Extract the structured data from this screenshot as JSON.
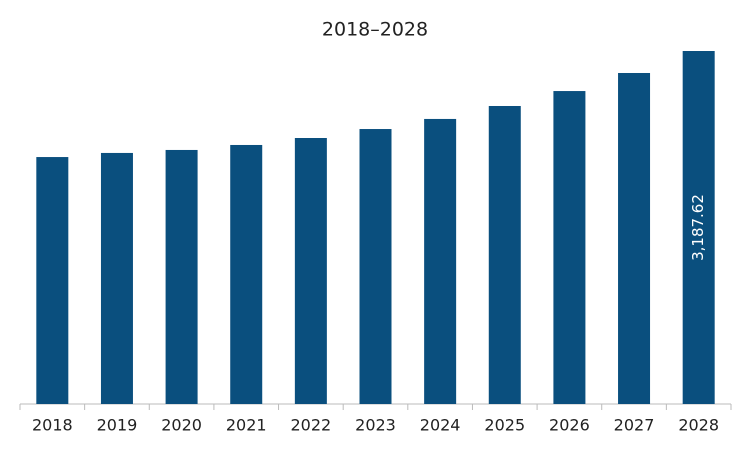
{
  "chart_data": {
    "type": "bar",
    "title": "2018–2028",
    "categories": [
      "2018",
      "2019",
      "2020",
      "2021",
      "2022",
      "2023",
      "2024",
      "2025",
      "2026",
      "2027",
      "2028"
    ],
    "values": [
      2230,
      2267,
      2294,
      2339,
      2402,
      2483,
      2574,
      2691,
      2826,
      2989,
      3187.62
    ],
    "value_labels": [
      null,
      null,
      null,
      null,
      null,
      null,
      null,
      null,
      null,
      null,
      "3,187.62"
    ],
    "color": "#0a4f7e"
  }
}
